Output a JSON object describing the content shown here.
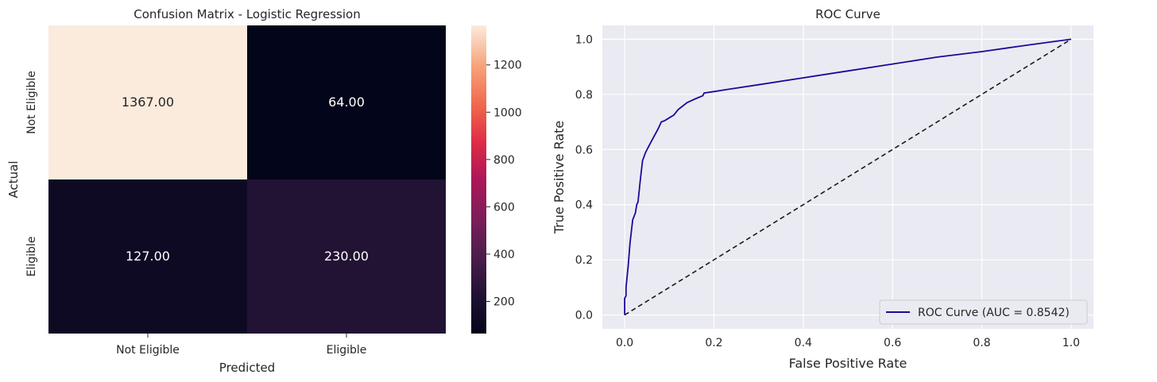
{
  "chart_data": [
    {
      "type": "heatmap",
      "title": "Confusion Matrix - Logistic Regression",
      "xlabel": "Predicted",
      "ylabel": "Actual",
      "x_categories": [
        "Not Eligible",
        "Eligible"
      ],
      "y_categories": [
        "Not Eligible",
        "Eligible"
      ],
      "matrix": [
        [
          1367,
          64
        ],
        [
          127,
          230
        ]
      ],
      "cell_labels": [
        [
          "1367.00",
          "64.00"
        ],
        [
          "127.00",
          "230.00"
        ]
      ],
      "colorbar": {
        "min": 64,
        "max": 1367,
        "ticks": [
          200,
          400,
          600,
          800,
          1000,
          1200
        ],
        "colormap": "rocket"
      }
    },
    {
      "type": "line",
      "title": "ROC Curve",
      "xlabel": "False Positive Rate",
      "ylabel": "True Positive Rate",
      "xlim": [
        -0.05,
        1.05
      ],
      "ylim": [
        -0.05,
        1.05
      ],
      "xticks": [
        0.0,
        0.2,
        0.4,
        0.6,
        0.8,
        1.0
      ],
      "yticks": [
        0.0,
        0.2,
        0.4,
        0.6,
        0.8,
        1.0
      ],
      "grid": true,
      "legend_placement": "lower-right",
      "series": [
        {
          "name": "ROC Curve (AUC = 0.8542)",
          "color": "#1a0a99",
          "style": "solid",
          "x": [
            0.0,
            0.0,
            0.003,
            0.003,
            0.008,
            0.012,
            0.018,
            0.024,
            0.027,
            0.03,
            0.035,
            0.04,
            0.047,
            0.055,
            0.065,
            0.075,
            0.082,
            0.09,
            0.1,
            0.11,
            0.12,
            0.14,
            0.16,
            0.175,
            0.178,
            0.2,
            0.23,
            0.3,
            0.4,
            0.5,
            0.6,
            0.7,
            0.8,
            0.9,
            1.0
          ],
          "y": [
            0.0,
            0.06,
            0.07,
            0.1,
            0.18,
            0.26,
            0.345,
            0.37,
            0.4,
            0.41,
            0.49,
            0.56,
            0.59,
            0.615,
            0.645,
            0.675,
            0.7,
            0.705,
            0.715,
            0.725,
            0.745,
            0.77,
            0.785,
            0.795,
            0.805,
            0.81,
            0.818,
            0.835,
            0.86,
            0.885,
            0.91,
            0.935,
            0.955,
            0.978,
            1.0
          ]
        },
        {
          "name": "",
          "color": "#1a1a1a",
          "style": "dashed",
          "x": [
            0.0,
            1.0
          ],
          "y": [
            0.0,
            1.0
          ]
        }
      ]
    }
  ]
}
